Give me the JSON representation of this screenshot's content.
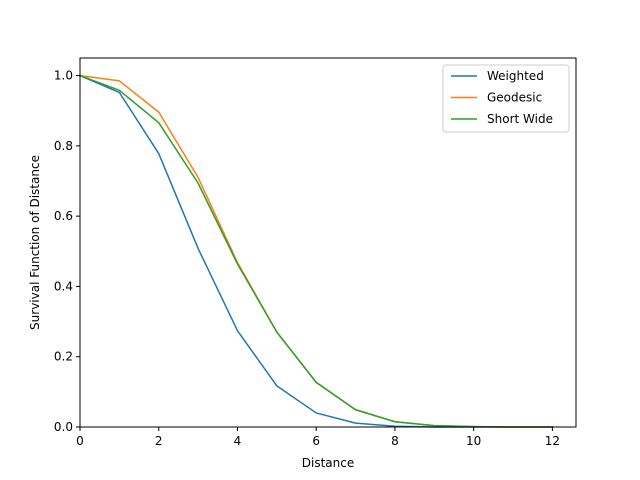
{
  "chart_data": {
    "type": "line",
    "title": "",
    "xlabel": "Distance",
    "ylabel": "Survival Function of Distance",
    "xlim": [
      0,
      12.6
    ],
    "ylim": [
      0,
      1.05
    ],
    "xticks": [
      0,
      2,
      4,
      6,
      8,
      10,
      12
    ],
    "yticks": [
      0.0,
      0.2,
      0.4,
      0.6,
      0.8,
      1.0
    ],
    "xtick_labels": [
      "0",
      "2",
      "4",
      "6",
      "8",
      "10",
      "12"
    ],
    "ytick_labels": [
      "0.0",
      "0.2",
      "0.4",
      "0.6",
      "0.8",
      "1.0"
    ],
    "grid": false,
    "legend_position": "top-right",
    "x": [
      0,
      1,
      2,
      3,
      4,
      5,
      6,
      7,
      8,
      9,
      10,
      11,
      12
    ],
    "series": [
      {
        "name": "Weighted",
        "color": "#1f77b4",
        "values": [
          1.0,
          0.952,
          0.778,
          0.508,
          0.274,
          0.117,
          0.04,
          0.011,
          0.002,
          0.0,
          0.0,
          0.0,
          0.0
        ]
      },
      {
        "name": "Geodesic",
        "color": "#ff7f0e",
        "values": [
          1.0,
          0.985,
          0.896,
          0.71,
          0.468,
          0.27,
          0.127,
          0.049,
          0.015,
          0.004,
          0.001,
          0.0,
          0.0
        ]
      },
      {
        "name": "Short Wide",
        "color": "#2ca02c",
        "values": [
          1.0,
          0.958,
          0.866,
          0.694,
          0.464,
          0.27,
          0.127,
          0.049,
          0.015,
          0.004,
          0.001,
          0.0,
          0.0
        ]
      }
    ]
  }
}
